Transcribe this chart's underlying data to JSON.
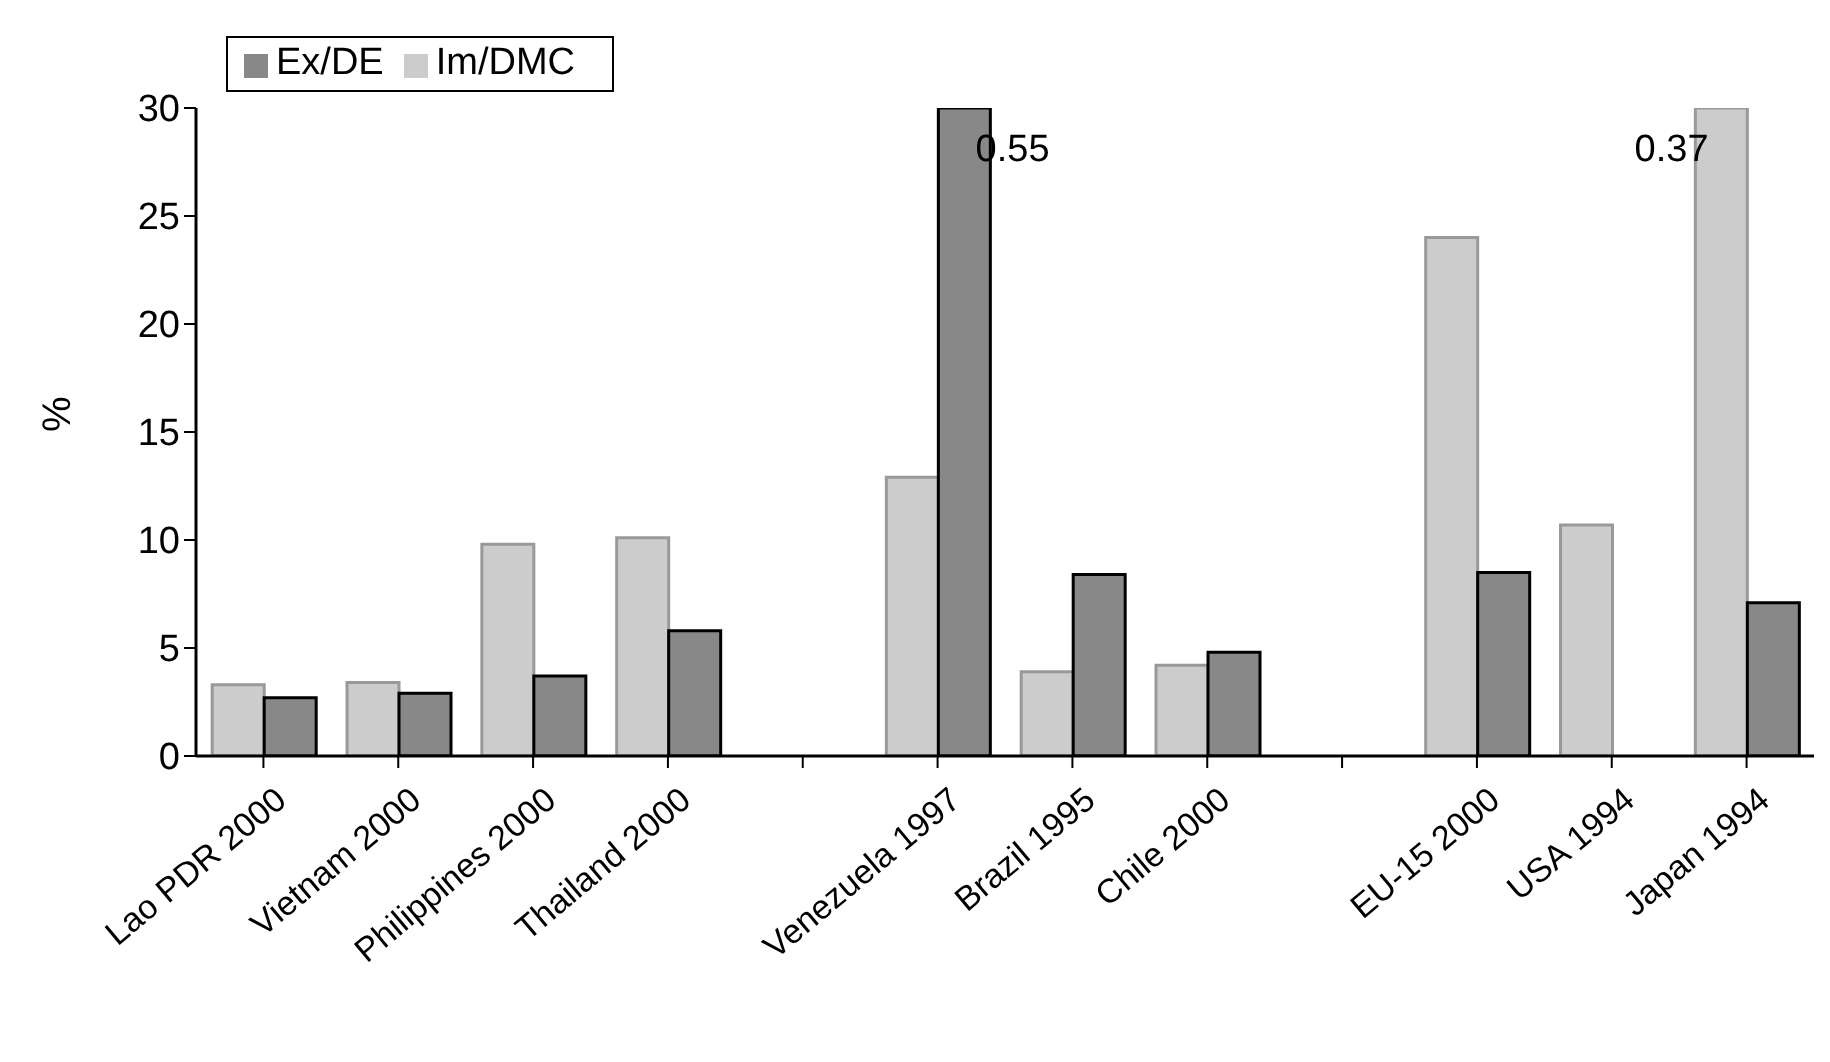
{
  "chart_data": {
    "type": "bar",
    "ylabel": "%",
    "categories": [
      "Lao PDR 2000",
      "Vietnam 2000",
      "Philippines 2000",
      "Thailand 2000",
      null,
      "Venezuela 1997",
      "Brazil 1995",
      "Chile 2000",
      null,
      "EU-15 2000",
      "USA 1994",
      "Japan 1994"
    ],
    "series": [
      {
        "name": "Im/DMC",
        "color": "#cccccc",
        "values": [
          3.3,
          3.4,
          9.8,
          10.1,
          null,
          12.9,
          3.9,
          4.2,
          null,
          24.0,
          10.7,
          30
        ]
      },
      {
        "name": "Ex/DE",
        "color": "#888888",
        "values": [
          2.7,
          2.9,
          3.7,
          5.8,
          null,
          30,
          8.4,
          4.8,
          null,
          8.5,
          null,
          7.1
        ]
      }
    ],
    "ylim": [
      0,
      30
    ],
    "yticks": [
      0,
      5,
      10,
      15,
      20,
      25,
      30
    ],
    "grid": false,
    "legend": "top left",
    "annotations": [
      {
        "text": "0.55",
        "x": "Venezuela 1997",
        "y": 30
      },
      {
        "text": "0.37",
        "x": "Japan 1994",
        "y": 30
      }
    ]
  }
}
